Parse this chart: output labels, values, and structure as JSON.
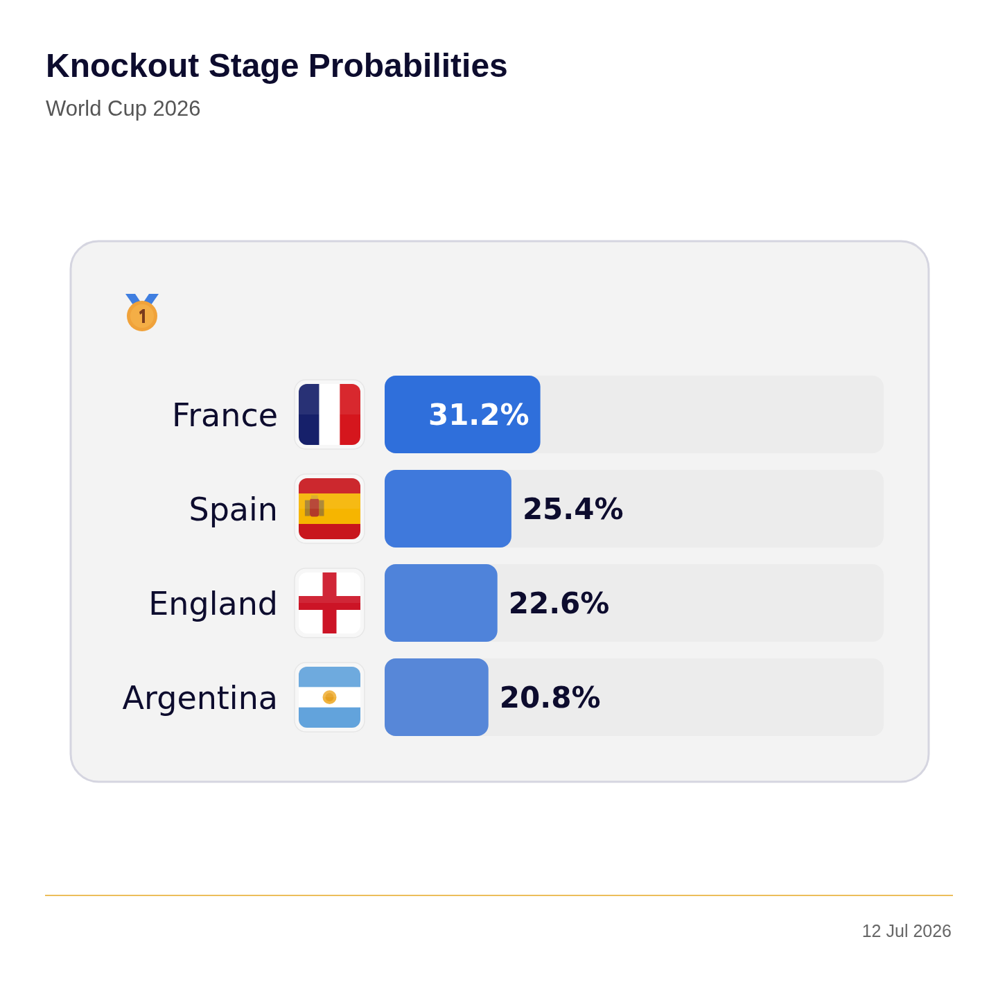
{
  "chart_data": {
    "type": "bar",
    "orientation": "horizontal",
    "title": "Knockout Stage Probabilities",
    "subtitle": "World Cup 2026",
    "categories": [
      "France",
      "Spain",
      "England",
      "Argentina"
    ],
    "values": [
      31.2,
      25.4,
      22.6,
      20.8
    ],
    "colors": [
      "#2f6fdb",
      "#3f79dc",
      "#4f83da",
      "#5787d8"
    ],
    "value_labels": [
      "31.2%",
      "25.4%",
      "22.6%",
      "20.8%"
    ],
    "xlim": [
      0,
      100
    ],
    "tick_labels": "y",
    "annotations": [
      "12 Jul 2026"
    ]
  }
}
